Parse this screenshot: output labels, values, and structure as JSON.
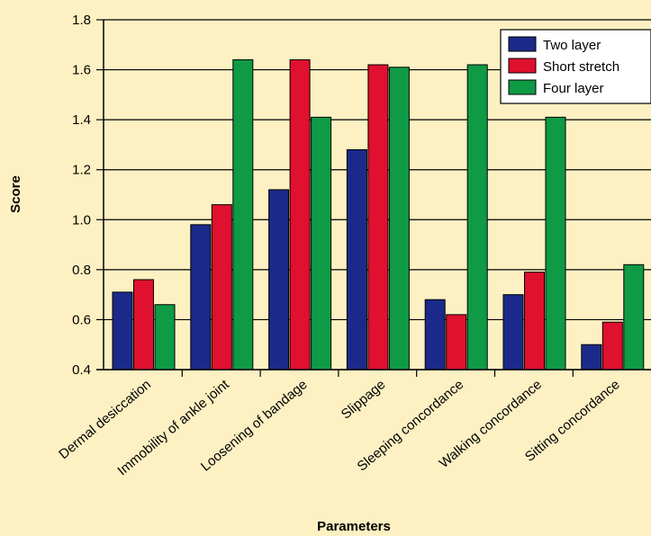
{
  "chart_data": {
    "type": "bar",
    "xlabel": "Parameters",
    "ylabel": "Score",
    "ylim": [
      0.4,
      1.8
    ],
    "yticks": [
      "0.4",
      "0.6",
      "0.8",
      "1.0",
      "1.2",
      "1.4",
      "1.6",
      "1.8"
    ],
    "grid": "horizontal",
    "legend_position": "top-right",
    "categories": [
      "Dermal desiccation",
      "Immobility of ankle joint",
      "Loosening of bandage",
      "Slippage",
      "Sleeping concordance",
      "Walking concordance",
      "Sitting concordance"
    ],
    "series": [
      {
        "name": "Two layer",
        "color": "#1b2a8a",
        "values": [
          0.71,
          0.98,
          1.12,
          1.28,
          0.68,
          0.7,
          0.5
        ]
      },
      {
        "name": "Short stretch",
        "color": "#e0102f",
        "values": [
          0.76,
          1.06,
          1.64,
          1.62,
          0.62,
          0.79,
          0.59
        ]
      },
      {
        "name": "Four layer",
        "color": "#0f9a45",
        "values": [
          0.66,
          1.64,
          1.41,
          1.61,
          1.62,
          1.41,
          0.82
        ]
      }
    ]
  }
}
